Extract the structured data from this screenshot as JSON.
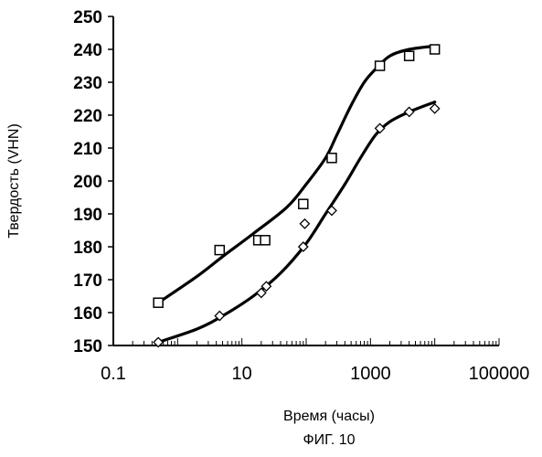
{
  "figure_caption": "ФИГ. 10",
  "chart_data": {
    "type": "scatter",
    "title": "",
    "xlabel": "Время (часы)",
    "ylabel": "Твердость (VHN)",
    "x_scale": "log",
    "xlim": [
      0.1,
      100000
    ],
    "ylim": [
      150,
      250
    ],
    "x_ticks": [
      0.1,
      10,
      1000,
      100000
    ],
    "x_tick_labels": [
      "0.1",
      "10",
      "1000",
      "100000"
    ],
    "y_ticks": [
      150,
      160,
      170,
      180,
      190,
      200,
      210,
      220,
      230,
      240,
      250
    ],
    "y_tick_labels": [
      "150",
      "160",
      "170",
      "180",
      "190",
      "200",
      "210",
      "220",
      "230",
      "240",
      "250"
    ],
    "grid": false,
    "series": [
      {
        "marker": "square",
        "points": [
          {
            "x": 0.5,
            "y": 163
          },
          {
            "x": 4.5,
            "y": 179
          },
          {
            "x": 18,
            "y": 182
          },
          {
            "x": 23,
            "y": 182
          },
          {
            "x": 90,
            "y": 193
          },
          {
            "x": 250,
            "y": 207
          },
          {
            "x": 1400,
            "y": 235
          },
          {
            "x": 4000,
            "y": 238
          },
          {
            "x": 10000,
            "y": 240
          }
        ],
        "fit": [
          {
            "x": 0.5,
            "y": 163
          },
          {
            "x": 2,
            "y": 171
          },
          {
            "x": 5,
            "y": 177
          },
          {
            "x": 15,
            "y": 184
          },
          {
            "x": 50,
            "y": 192
          },
          {
            "x": 100,
            "y": 199
          },
          {
            "x": 200,
            "y": 207
          },
          {
            "x": 300,
            "y": 214
          },
          {
            "x": 500,
            "y": 223
          },
          {
            "x": 800,
            "y": 230
          },
          {
            "x": 1200,
            "y": 234
          },
          {
            "x": 2000,
            "y": 238
          },
          {
            "x": 4000,
            "y": 240
          },
          {
            "x": 10000,
            "y": 241
          }
        ]
      },
      {
        "marker": "diamond",
        "points": [
          {
            "x": 0.5,
            "y": 151
          },
          {
            "x": 4.5,
            "y": 159
          },
          {
            "x": 20,
            "y": 166
          },
          {
            "x": 24,
            "y": 168
          },
          {
            "x": 90,
            "y": 180
          },
          {
            "x": 95,
            "y": 187
          },
          {
            "x": 250,
            "y": 191
          },
          {
            "x": 1400,
            "y": 216
          },
          {
            "x": 4000,
            "y": 221
          },
          {
            "x": 10000,
            "y": 222
          }
        ],
        "fit": [
          {
            "x": 0.5,
            "y": 151
          },
          {
            "x": 2,
            "y": 155
          },
          {
            "x": 5,
            "y": 159
          },
          {
            "x": 15,
            "y": 165
          },
          {
            "x": 40,
            "y": 172
          },
          {
            "x": 100,
            "y": 181
          },
          {
            "x": 200,
            "y": 190
          },
          {
            "x": 400,
            "y": 199
          },
          {
            "x": 700,
            "y": 207
          },
          {
            "x": 1200,
            "y": 214
          },
          {
            "x": 2000,
            "y": 218
          },
          {
            "x": 4000,
            "y": 221
          },
          {
            "x": 10000,
            "y": 224
          }
        ]
      }
    ]
  }
}
